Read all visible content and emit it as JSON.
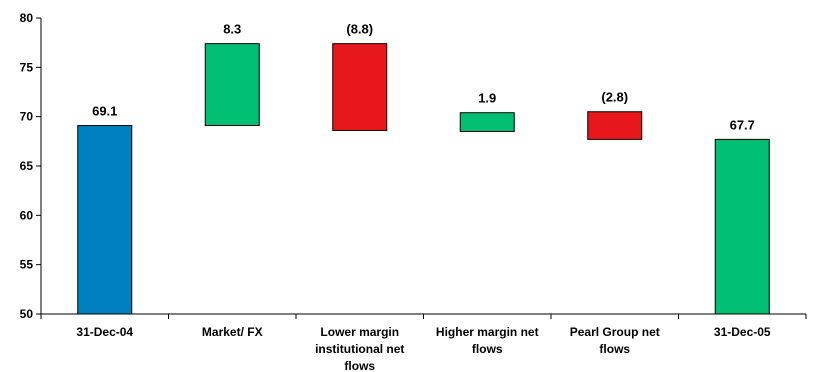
{
  "chart_data": {
    "type": "bar",
    "subtype": "waterfall",
    "categories": [
      [
        "31-Dec-04"
      ],
      [
        "Market/ FX"
      ],
      [
        "Lower margin",
        "institutional net",
        "flows"
      ],
      [
        "Higher margin net",
        "flows"
      ],
      [
        "Pearl Group net",
        "flows"
      ],
      [
        "31-Dec-05"
      ]
    ],
    "bars": [
      {
        "kind": "total",
        "low": 50,
        "high": 69.1,
        "label": "69.1",
        "color": "#0080c0"
      },
      {
        "kind": "increase",
        "low": 69.1,
        "high": 77.4,
        "label": "8.3",
        "color": "#00bf72"
      },
      {
        "kind": "decrease",
        "low": 68.6,
        "high": 77.4,
        "label": "(8.8)",
        "color": "#e8171b"
      },
      {
        "kind": "increase",
        "low": 68.5,
        "high": 70.4,
        "label": "1.9",
        "color": "#00bf72"
      },
      {
        "kind": "decrease",
        "low": 67.7,
        "high": 70.5,
        "label": "(2.8)",
        "color": "#e8171b"
      },
      {
        "kind": "total",
        "low": 50,
        "high": 67.7,
        "label": "67.7",
        "color": "#00bf72"
      }
    ],
    "yticks": [
      "50",
      "55",
      "60",
      "65",
      "70",
      "75",
      "80"
    ],
    "ylim": [
      50,
      80
    ],
    "grid": false,
    "legend": "none"
  }
}
